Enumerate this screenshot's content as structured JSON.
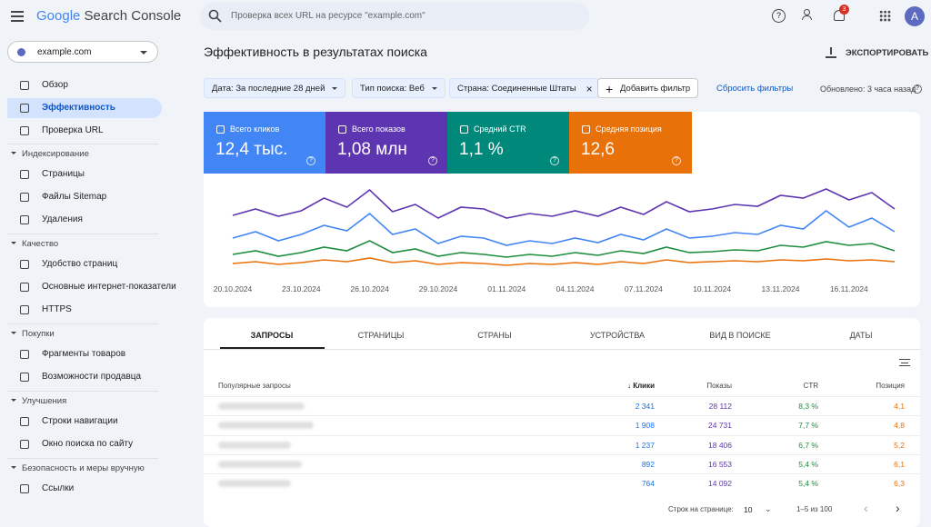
{
  "header": {
    "logo_brand": "Google",
    "logo_product": "Search Console",
    "search_placeholder": "Проверка всех URL на ресурсе \"example.com\"",
    "notification_count": "3",
    "avatar": "A"
  },
  "property": "example.com",
  "nav_top": [
    "Обзор",
    "Эффективность",
    "Проверка URL"
  ],
  "nav_active": 1,
  "nav_sections": [
    {
      "title": "Индексирование",
      "items": [
        "Страницы",
        "Файлы Sitemap",
        "Удаления"
      ]
    },
    {
      "title": "Качество",
      "items": [
        "Удобство страниц",
        "Основные интернет-показатели",
        "HTTPS"
      ]
    },
    {
      "title": "Покупки",
      "items": [
        "Фрагменты товаров",
        "Возможности продавца"
      ]
    },
    {
      "title": "Улучшения",
      "items": [
        "Строки навигации",
        "Окно поиска по сайту"
      ]
    },
    {
      "title": "Безопасность и меры вручную",
      "items": [
        "Ссылки"
      ]
    }
  ],
  "page_title": "Эффективность в результатах поиска",
  "export": "ЭКСПОРТИРОВАТЬ",
  "filters": [
    "Дата: За последние 28 дней",
    "Тип поиска: Веб",
    "Страна: Соединенные Штаты"
  ],
  "add_filter": "Добавить фильтр",
  "reset_filters": "Сбросить фильтры",
  "updated": "Обновлено: 3 часа назад",
  "metrics": [
    {
      "label": "Всего кликов",
      "value": "12,4 тыс.",
      "color": "#4285f4"
    },
    {
      "label": "Всего показов",
      "value": "1,08 млн",
      "color": "#5e35b1"
    },
    {
      "label": "Средний CTR",
      "value": "1,1 %",
      "color": "#00897b"
    },
    {
      "label": "Средняя позиция",
      "value": "12,6",
      "color": "#e8710a"
    }
  ],
  "chart_data": {
    "type": "line",
    "categories": [
      "20.10.2024",
      null,
      null,
      "23.10.2024",
      null,
      null,
      "26.10.2024",
      null,
      null,
      "29.10.2024",
      null,
      null,
      "01.11.2024",
      null,
      null,
      "04.11.2024",
      null,
      null,
      "07.11.2024",
      null,
      null,
      "10.11.2024",
      null,
      null,
      "13.11.2024",
      null,
      null,
      "16.11.2024",
      null,
      null
    ],
    "series": [
      {
        "color": "#5e35b1",
        "values": [
          63,
          70,
          62,
          68,
          82,
          72,
          91,
          67,
          75,
          60,
          72,
          70,
          60,
          65,
          62,
          68,
          62,
          72,
          64,
          78,
          67,
          70,
          75,
          73,
          85,
          82,
          92,
          80,
          88,
          70
        ]
      },
      {
        "color": "#4285f4",
        "values": [
          38,
          45,
          35,
          42,
          52,
          46,
          65,
          42,
          48,
          32,
          40,
          38,
          30,
          35,
          32,
          38,
          33,
          42,
          36,
          48,
          38,
          40,
          44,
          42,
          52,
          48,
          68,
          50,
          60,
          45
        ]
      },
      {
        "color": "#1e8e3e",
        "values": [
          20,
          24,
          18,
          22,
          28,
          24,
          35,
          22,
          26,
          18,
          22,
          20,
          17,
          20,
          18,
          22,
          19,
          24,
          21,
          28,
          22,
          23,
          25,
          24,
          30,
          28,
          34,
          30,
          32,
          24
        ]
      },
      {
        "color": "#e8710a",
        "values": [
          10,
          12,
          9,
          11,
          14,
          12,
          16,
          11,
          13,
          9,
          11,
          10,
          8,
          10,
          9,
          11,
          9,
          12,
          10,
          14,
          11,
          12,
          13,
          12,
          14,
          13,
          15,
          13,
          14,
          12
        ]
      }
    ]
  },
  "tabs": [
    "ЗАПРОСЫ",
    "СТРАНИЦЫ",
    "СТРАНЫ",
    "УСТРОЙСТВА",
    "ВИД В ПОИСКЕ",
    "ДАТЫ"
  ],
  "table": {
    "columns": [
      "Популярные запросы",
      "Клики",
      "Показы",
      "CTR",
      "Позиция"
    ],
    "rows": [
      [
        "2 341",
        "28 112",
        "8,3 %",
        "4,1"
      ],
      [
        "1 908",
        "24 731",
        "7,7 %",
        "4,8"
      ],
      [
        "1 237",
        "18 406",
        "6,7 %",
        "5,2"
      ],
      [
        "892",
        "16 553",
        "5,4 %",
        "6,1"
      ],
      [
        "764",
        "14 092",
        "5,4 %",
        "6,3"
      ]
    ],
    "column_colors": [
      "#1a73e8",
      "#5e35b1",
      "#1e8e3e",
      "#e8710a"
    ]
  },
  "pagination": {
    "rows_label": "Строк на странице:",
    "rows_value": "10",
    "range": "1–5 из 100"
  }
}
